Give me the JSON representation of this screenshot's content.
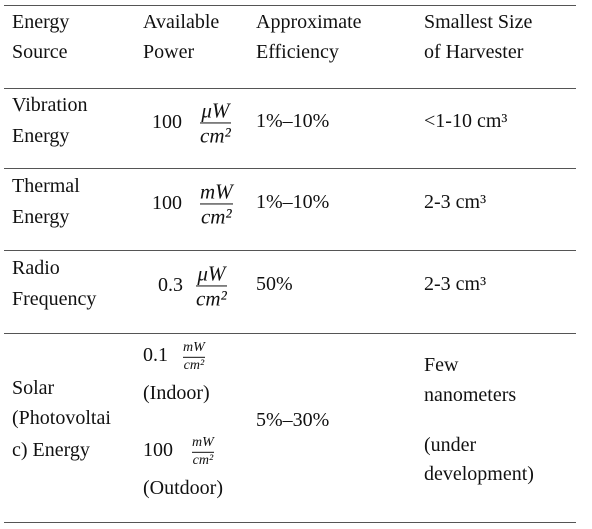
{
  "table": {
    "header": [
      [
        "Energy",
        "Source"
      ],
      [
        "Available",
        "Power"
      ],
      [
        "Approximate",
        "Efficiency"
      ],
      [
        "Smallest Size",
        "of Harvester"
      ]
    ],
    "rows": [
      {
        "source": [
          "Vibration",
          "Energy"
        ],
        "power": [
          {
            "amount": "100",
            "numerator": "μW",
            "denominator": "cm²"
          }
        ],
        "efficiency": "1%–10%",
        "size": [
          "<1-10 cm³"
        ]
      },
      {
        "source": [
          "Thermal",
          "Energy"
        ],
        "power": [
          {
            "amount": "100",
            "numerator": "mW",
            "denominator": "cm²"
          }
        ],
        "efficiency": "1%–10%",
        "size": [
          "2-3 cm³"
        ]
      },
      {
        "source": [
          "Radio",
          "Frequency"
        ],
        "power": [
          {
            "amount": "0.3",
            "numerator": "μW",
            "denominator": "cm²"
          }
        ],
        "efficiency": "50%",
        "size": [
          "2-3 cm³"
        ]
      },
      {
        "source": [
          "Solar",
          "(Photovoltai",
          "c) Energy"
        ],
        "power": [
          {
            "amount": "0.1",
            "numerator": "mW",
            "denominator": "cm²",
            "note": "(Indoor)"
          },
          {
            "amount": "100",
            "numerator": "mW",
            "denominator": "cm²",
            "note": "(Outdoor)"
          }
        ],
        "efficiency": "5%–30%",
        "size": [
          "Few",
          "nanometers",
          "(under",
          "development)"
        ]
      }
    ]
  }
}
